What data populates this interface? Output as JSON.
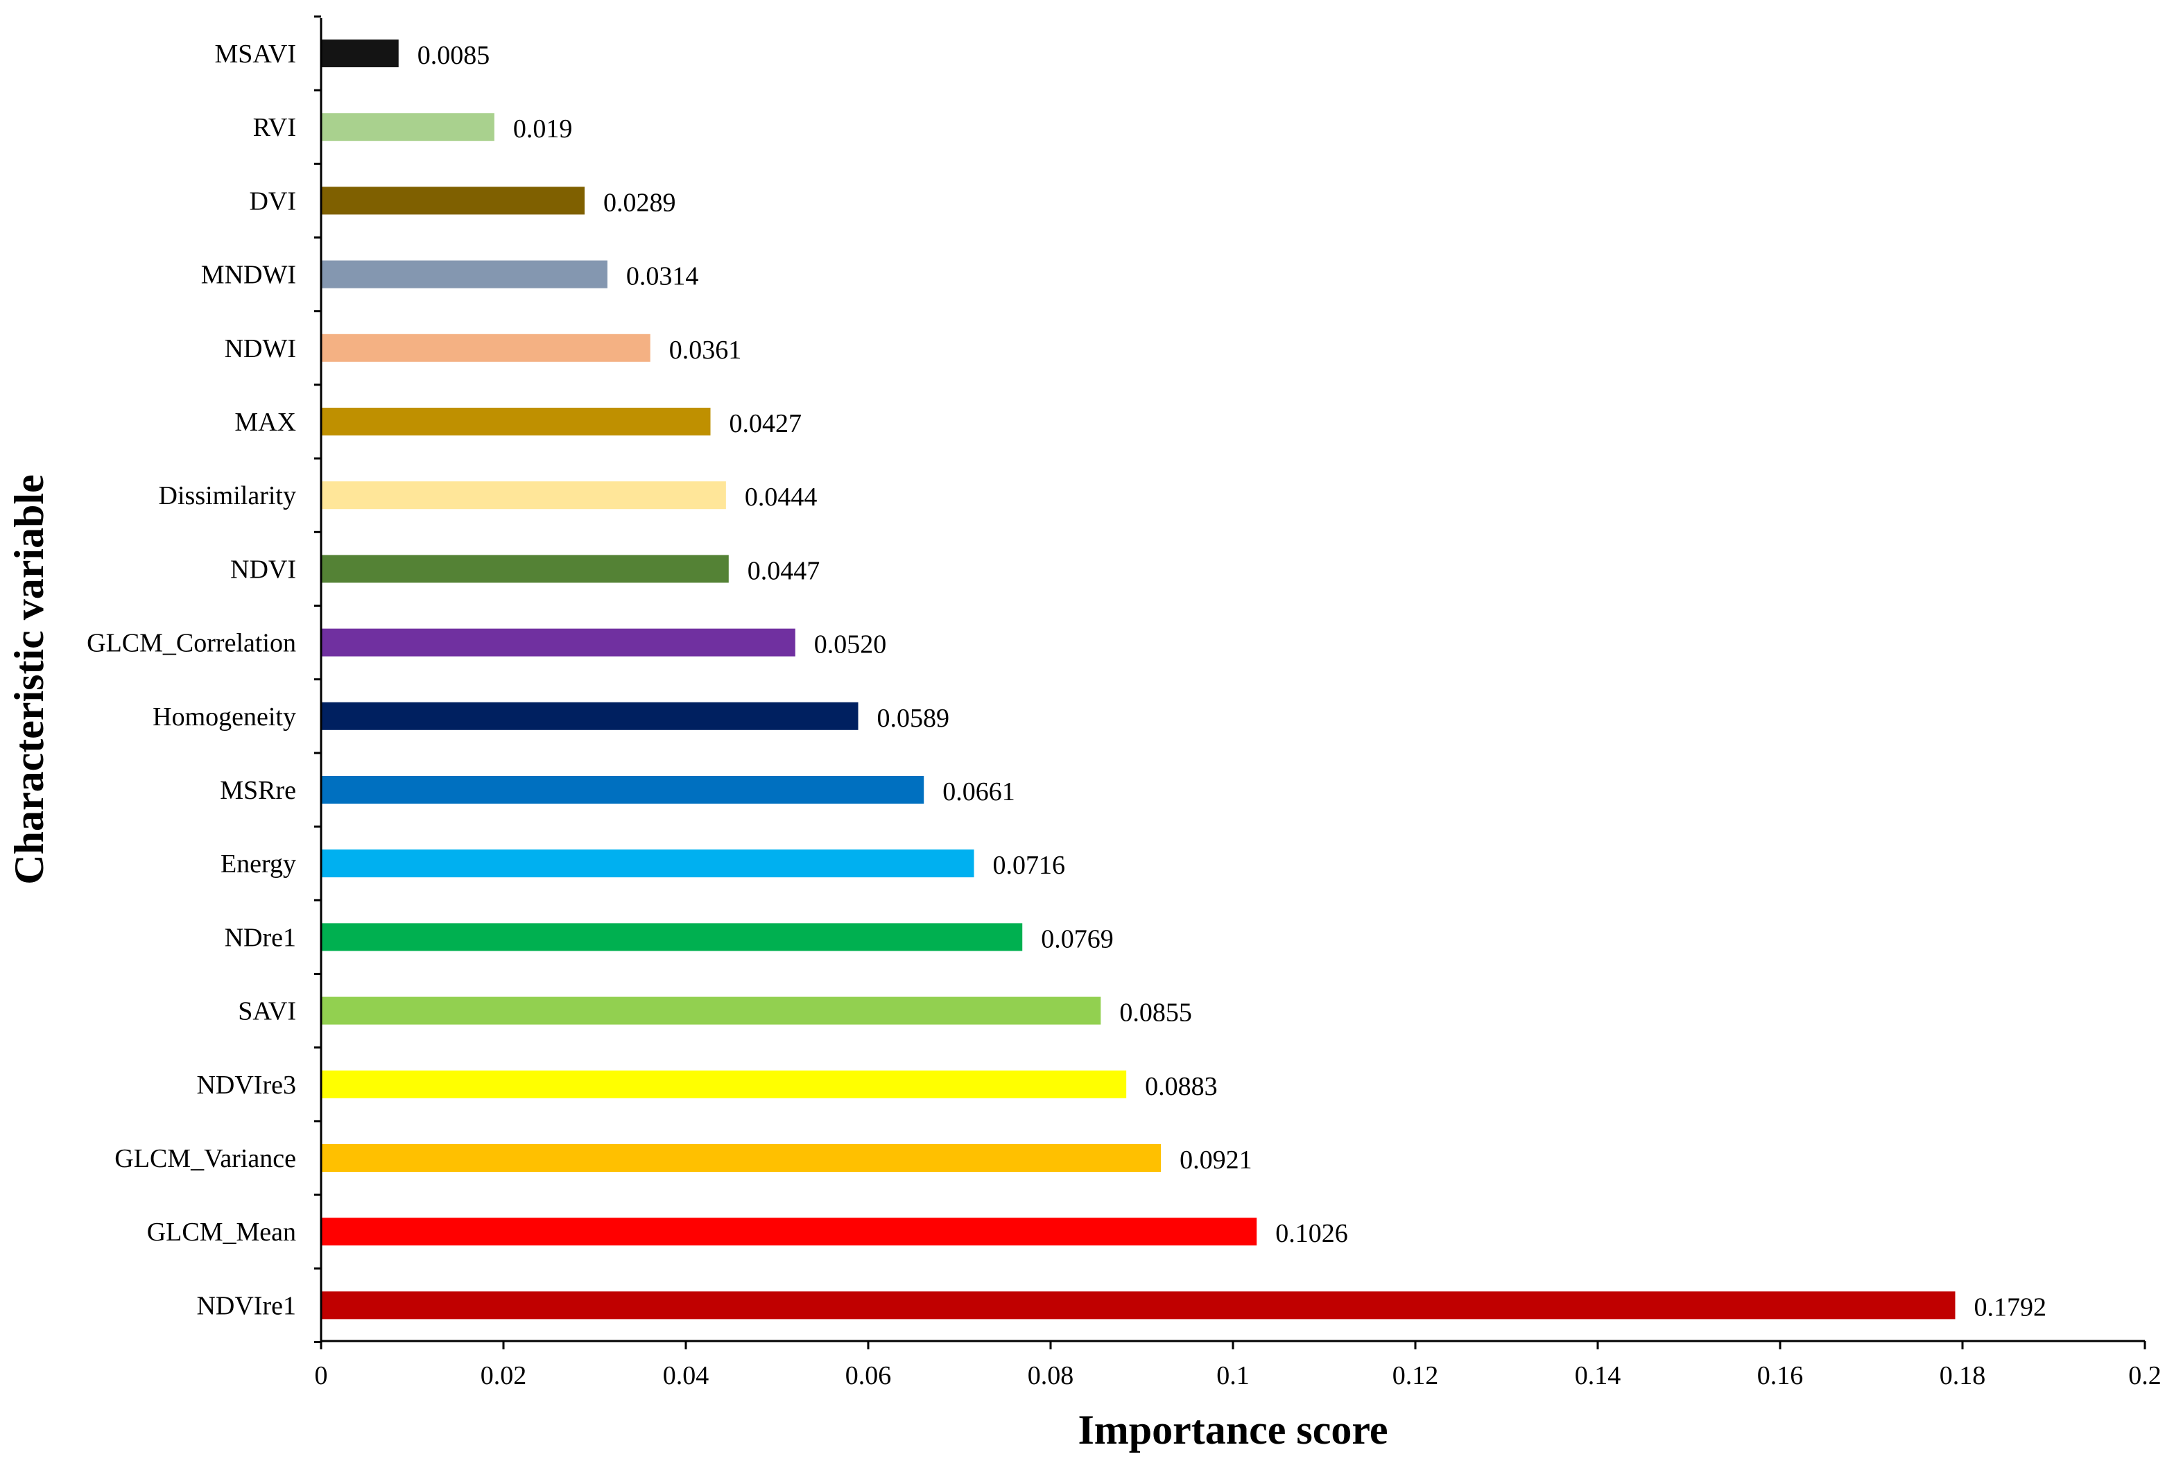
{
  "chart_data": {
    "type": "bar",
    "orientation": "horizontal",
    "xlabel": "Importance score",
    "ylabel": "Characteristic variable",
    "xlim": [
      0,
      0.2
    ],
    "x_ticks": [
      "0",
      "0.02",
      "0.04",
      "0.06",
      "0.08",
      "0.1",
      "0.12",
      "0.14",
      "0.16",
      "0.18",
      "0.2"
    ],
    "grid": false,
    "legend": "none",
    "categories": [
      "MSAVI",
      "RVI",
      "DVI",
      "MNDWI",
      "NDWI",
      "MAX",
      "Dissimilarity",
      "NDVI",
      "GLCM_Correlation",
      "Homogeneity",
      "MSRre",
      "Energy",
      "NDre1",
      "SAVI",
      "NDVIre3",
      "GLCM_Variance",
      "GLCM_Mean",
      "NDVIre1"
    ],
    "values": [
      0.0085,
      0.019,
      0.0289,
      0.0314,
      0.0361,
      0.0427,
      0.0444,
      0.0447,
      0.052,
      0.0589,
      0.0661,
      0.0716,
      0.0769,
      0.0855,
      0.0883,
      0.0921,
      0.1026,
      0.1792
    ],
    "value_labels": [
      "0.0085",
      "0.019",
      "0.0289",
      "0.0314",
      "0.0361",
      "0.0427",
      "0.0444",
      "0.0447",
      "0.0520",
      "0.0589",
      "0.0661",
      "0.0716",
      "0.0769",
      "0.0855",
      "0.0883",
      "0.0921",
      "0.1026",
      "0.1792"
    ],
    "colors": [
      "#141414",
      "#a9d18e",
      "#7f6000",
      "#8497b0",
      "#f4b183",
      "#bf9000",
      "#ffe699",
      "#548235",
      "#7030a0",
      "#002060",
      "#0070c0",
      "#00b0f0",
      "#00b050",
      "#92d050",
      "#ffff00",
      "#ffc000",
      "#ff0000",
      "#c00000"
    ]
  }
}
